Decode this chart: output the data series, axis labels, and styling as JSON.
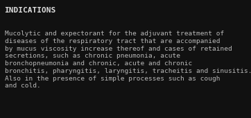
{
  "background_color": "#111111",
  "title": "INDICATIONS",
  "title_color": "#e0e0e0",
  "title_fontsize": 8.0,
  "title_bold": true,
  "body_lines": [
    "Mucolytic and expectorant for the adjuvant treatment of",
    "diseases of the respiratory tract that are accompanied",
    "by mucus viscosity increase thereof and cases of retained",
    "secretions, such as chronic pneumonia, acute",
    "bronchopneumonia and chronic, acute and chronic",
    "bronchitis, pharyngitis, laryngitis, tracheitis and sinusitis.",
    "Also in the presence of simple processes such as cough",
    "and cold."
  ],
  "body_color": "#b8b8b8",
  "body_fontsize": 6.8,
  "fig_width": 3.62,
  "fig_height": 1.7,
  "dpi": 100
}
